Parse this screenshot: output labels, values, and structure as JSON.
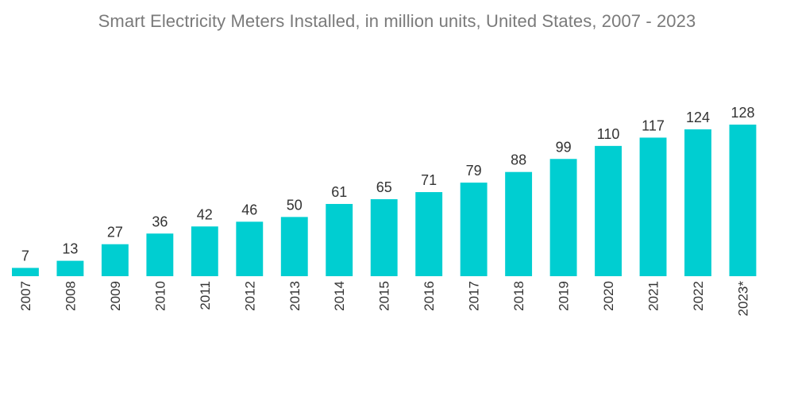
{
  "chart_data": {
    "type": "bar",
    "title": "Smart Electricity Meters Installed, in million units, United States, 2007 - 2023",
    "xlabel": "",
    "ylabel": "",
    "categories": [
      "2007",
      "2008",
      "2009",
      "2010",
      "2011",
      "2012",
      "2013",
      "2014",
      "2015",
      "2016",
      "2017",
      "2018",
      "2019",
      "2020",
      "2021",
      "2022",
      "2023*"
    ],
    "values": [
      7,
      13,
      27,
      36,
      42,
      46,
      50,
      61,
      65,
      71,
      79,
      88,
      99,
      110,
      117,
      124,
      128
    ],
    "ylim": [
      0,
      128
    ],
    "grid": false,
    "legend": "none",
    "colors": {
      "bar": "#00CED1",
      "title": "#7a7a7a",
      "label": "#333333"
    }
  }
}
